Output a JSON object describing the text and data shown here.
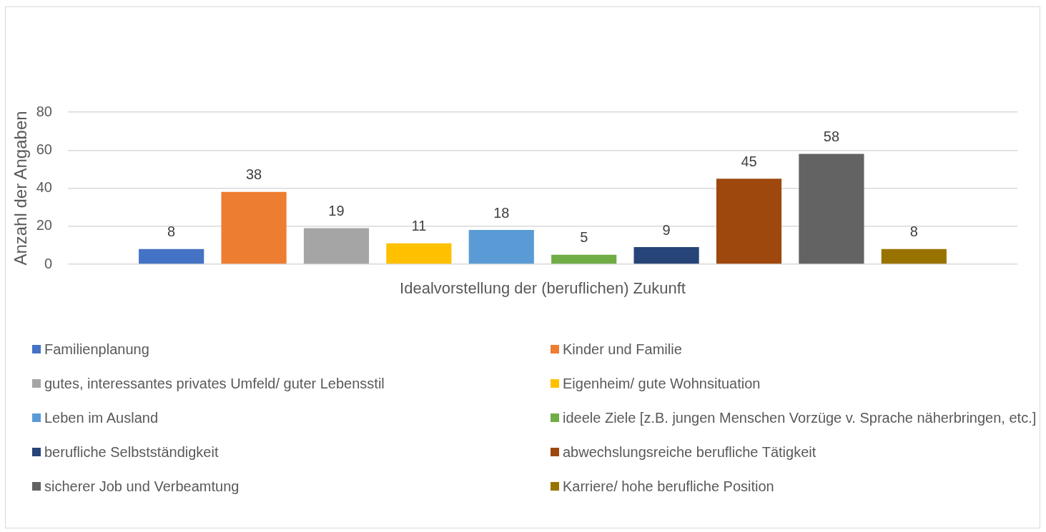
{
  "chart_data": {
    "type": "bar",
    "xlabel": "Idealvorstellung der (beruflichen) Zukunft",
    "ylabel": "Anzahl der Angaben",
    "categories": [
      null
    ],
    "series": [
      {
        "name": "Familienplanung",
        "color": "#4472c4",
        "values": [
          8
        ]
      },
      {
        "name": "Kinder und Familie",
        "color": "#ed7d31",
        "values": [
          38
        ]
      },
      {
        "name": "gutes, interessantes privates Umfeld/ guter Lebensstil",
        "color": "#a5a5a5",
        "values": [
          19
        ]
      },
      {
        "name": "Eigenheim/ gute Wohnsituation",
        "color": "#ffc000",
        "values": [
          11
        ]
      },
      {
        "name": "Leben im Ausland",
        "color": "#5b9bd5",
        "values": [
          18
        ]
      },
      {
        "name": "ideele Ziele [z.B. jungen Menschen Vorzüge v. Sprache näherbringen, etc.]",
        "color": "#70ad47",
        "values": [
          5
        ]
      },
      {
        "name": "berufliche Selbstständigkeit",
        "color": "#264478",
        "values": [
          9
        ]
      },
      {
        "name": "abwechslungsreiche berufliche Tätigkeit",
        "color": "#9e480e",
        "values": [
          45
        ]
      },
      {
        "name": "sicherer Job und Verbeamtung",
        "color": "#636363",
        "values": [
          58
        ]
      },
      {
        "name": "Karriere/ hohe berufliche Position",
        "color": "#997300",
        "values": [
          8
        ]
      }
    ],
    "ylim": [
      0,
      80
    ],
    "yticks": [
      0,
      20,
      40,
      60,
      80
    ],
    "grid": "y",
    "legend": "bottom",
    "data_labels": true
  }
}
